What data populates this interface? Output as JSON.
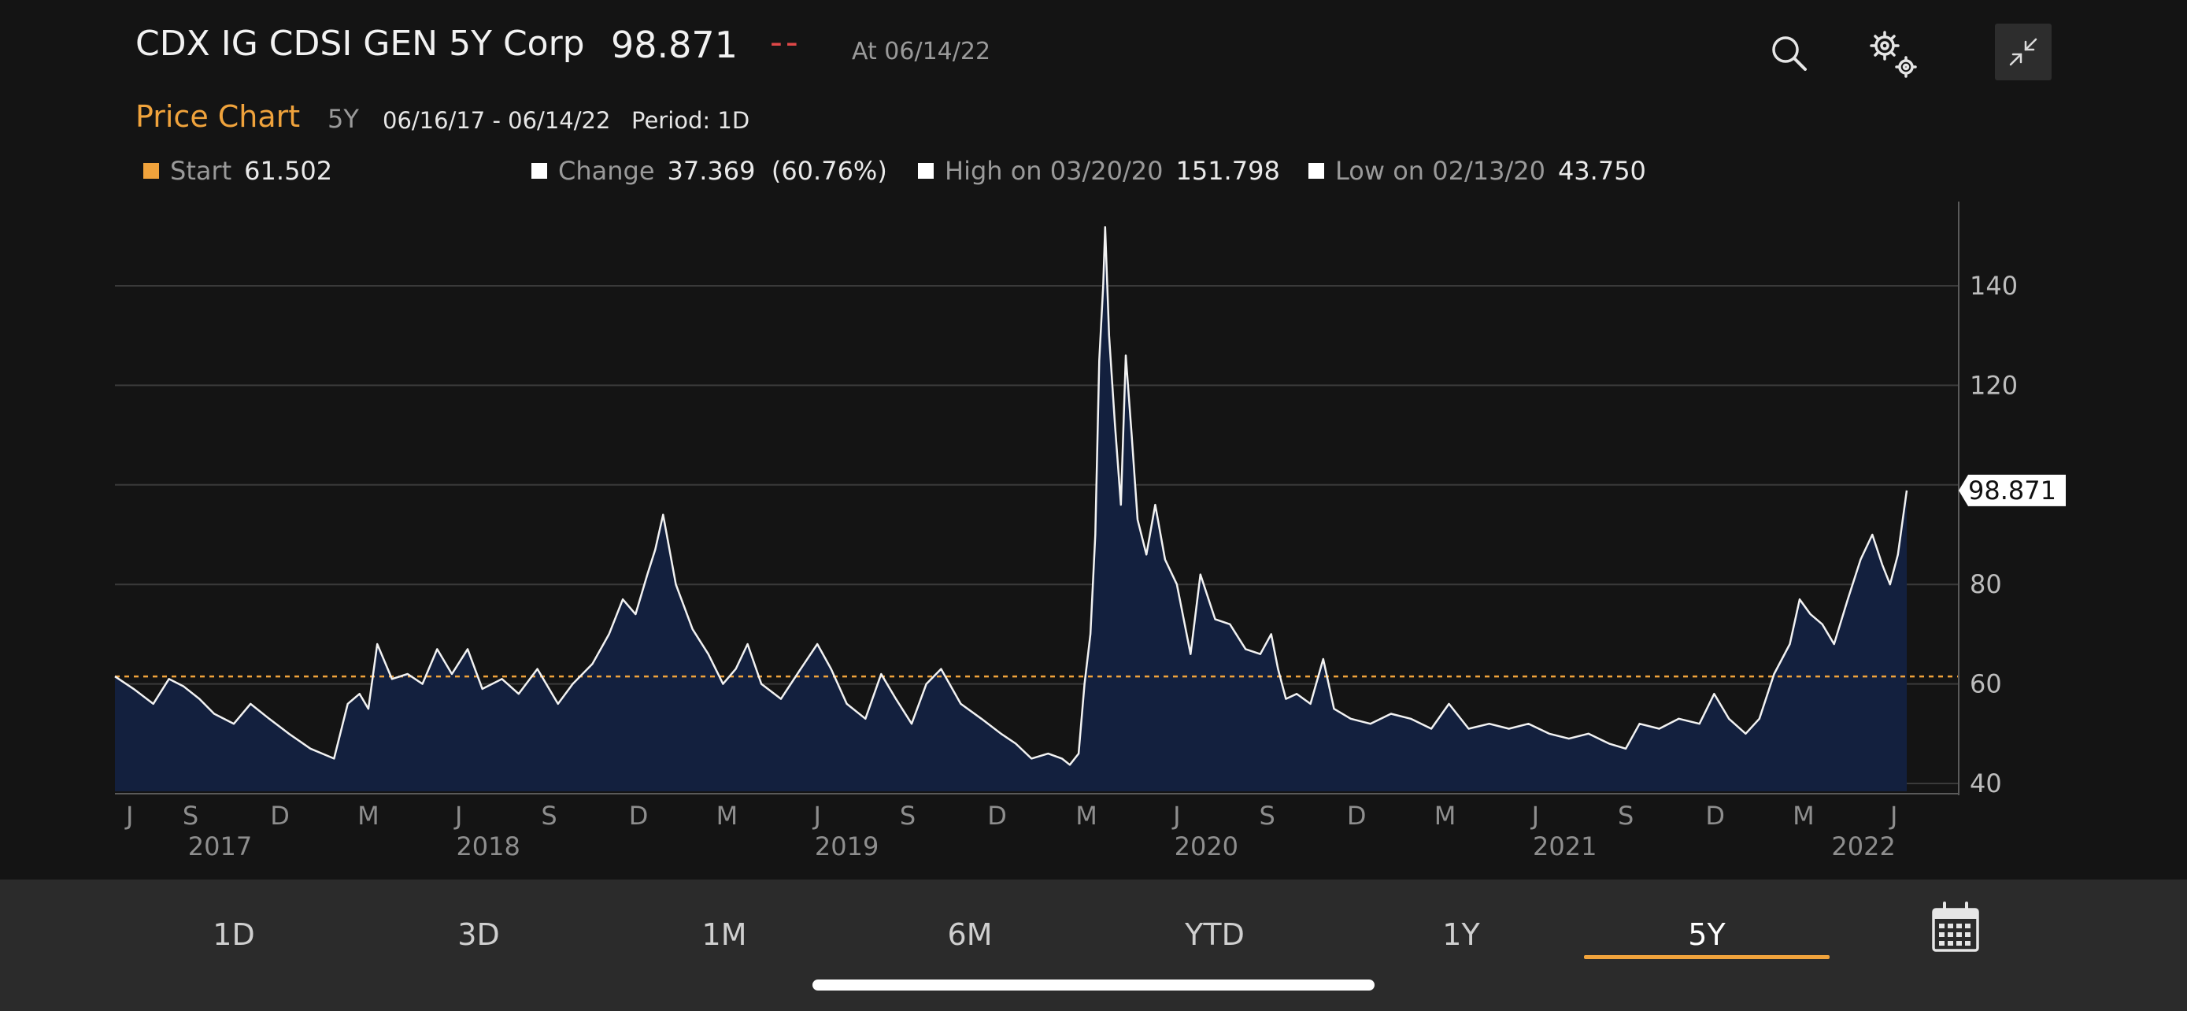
{
  "header": {
    "title": "CDX IG CDSI GEN 5Y Corp",
    "price": "98.871",
    "change_placeholder": "--",
    "as_of": "At 06/14/22"
  },
  "subheader": {
    "label": "Price Chart",
    "range": "5Y",
    "dates": "06/16/17 - 06/14/22",
    "period": "Period: 1D"
  },
  "stats": {
    "start": {
      "label": "Start",
      "value": "61.502"
    },
    "change": {
      "label": "Change",
      "value": "37.369  (60.76%)"
    },
    "high": {
      "label": "High on 03/20/20",
      "value": "151.798"
    },
    "low": {
      "label": "Low on 02/13/20",
      "value": "43.750"
    }
  },
  "colors": {
    "accent": "#f0a33c",
    "line": "#f2f2f2",
    "area": "#13203e",
    "background": "#141414",
    "negative": "#e04848"
  },
  "icons": {
    "search": "search-icon",
    "settings": "gear-icon",
    "minimize": "collapse-icon",
    "calendar": "calendar-icon"
  },
  "chart_data": {
    "type": "area",
    "x_start": "2017-06-16",
    "x_end": "2022-06-14",
    "ylim": [
      40,
      160
    ],
    "yticks": [
      140,
      120,
      100,
      80,
      60,
      40
    ],
    "ytick_labels": [
      "140",
      "120",
      "",
      "80",
      "60",
      "40"
    ],
    "reference_line": 61.502,
    "last_value_label": "98.871",
    "xticks": [
      {
        "date": "2017-07-01",
        "label": "J"
      },
      {
        "date": "2017-09-01",
        "label": "S"
      },
      {
        "date": "2017-12-01",
        "label": "D"
      },
      {
        "date": "2018-03-01",
        "label": "M"
      },
      {
        "date": "2018-06-01",
        "label": "J"
      },
      {
        "date": "2018-09-01",
        "label": "S"
      },
      {
        "date": "2018-12-01",
        "label": "D"
      },
      {
        "date": "2019-03-01",
        "label": "M"
      },
      {
        "date": "2019-06-01",
        "label": "J"
      },
      {
        "date": "2019-09-01",
        "label": "S"
      },
      {
        "date": "2019-12-01",
        "label": "D"
      },
      {
        "date": "2020-03-01",
        "label": "M"
      },
      {
        "date": "2020-06-01",
        "label": "J"
      },
      {
        "date": "2020-09-01",
        "label": "S"
      },
      {
        "date": "2020-12-01",
        "label": "D"
      },
      {
        "date": "2021-03-01",
        "label": "M"
      },
      {
        "date": "2021-06-01",
        "label": "J"
      },
      {
        "date": "2021-09-01",
        "label": "S"
      },
      {
        "date": "2021-12-01",
        "label": "D"
      },
      {
        "date": "2022-03-01",
        "label": "M"
      },
      {
        "date": "2022-06-01",
        "label": "J"
      }
    ],
    "years": [
      {
        "date": "2017-10-01",
        "label": "2017"
      },
      {
        "date": "2018-07-01",
        "label": "2018"
      },
      {
        "date": "2019-07-01",
        "label": "2019"
      },
      {
        "date": "2020-07-01",
        "label": "2020"
      },
      {
        "date": "2021-07-01",
        "label": "2021"
      },
      {
        "date": "2022-05-01",
        "label": "2022"
      }
    ],
    "series": [
      {
        "points": [
          [
            "2017-06-16",
            61.5
          ],
          [
            "2017-07-05",
            59
          ],
          [
            "2017-07-25",
            56
          ],
          [
            "2017-08-10",
            61
          ],
          [
            "2017-08-25",
            59.5
          ],
          [
            "2017-09-10",
            57
          ],
          [
            "2017-09-25",
            54
          ],
          [
            "2017-10-15",
            52
          ],
          [
            "2017-11-01",
            56
          ],
          [
            "2017-11-20",
            53
          ],
          [
            "2017-12-10",
            50
          ],
          [
            "2018-01-01",
            47
          ],
          [
            "2018-01-25",
            45
          ],
          [
            "2018-02-08",
            56
          ],
          [
            "2018-02-20",
            58
          ],
          [
            "2018-03-01",
            55
          ],
          [
            "2018-03-10",
            68
          ],
          [
            "2018-03-25",
            61
          ],
          [
            "2018-04-10",
            62
          ],
          [
            "2018-04-25",
            60
          ],
          [
            "2018-05-10",
            67
          ],
          [
            "2018-05-25",
            62
          ],
          [
            "2018-06-10",
            67
          ],
          [
            "2018-06-25",
            59
          ],
          [
            "2018-07-15",
            61
          ],
          [
            "2018-08-01",
            58
          ],
          [
            "2018-08-20",
            63
          ],
          [
            "2018-09-10",
            56
          ],
          [
            "2018-09-25",
            60
          ],
          [
            "2018-10-15",
            64
          ],
          [
            "2018-11-01",
            70
          ],
          [
            "2018-11-15",
            77
          ],
          [
            "2018-11-28",
            74
          ],
          [
            "2018-12-10",
            82
          ],
          [
            "2018-12-18",
            87
          ],
          [
            "2018-12-26",
            94
          ],
          [
            "2019-01-08",
            80
          ],
          [
            "2019-01-25",
            71
          ],
          [
            "2019-02-10",
            66
          ],
          [
            "2019-02-25",
            60
          ],
          [
            "2019-03-10",
            63
          ],
          [
            "2019-03-22",
            68
          ],
          [
            "2019-04-05",
            60
          ],
          [
            "2019-04-25",
            57
          ],
          [
            "2019-05-15",
            63
          ],
          [
            "2019-06-01",
            68
          ],
          [
            "2019-06-15",
            63
          ],
          [
            "2019-07-01",
            56
          ],
          [
            "2019-07-20",
            53
          ],
          [
            "2019-08-05",
            62
          ],
          [
            "2019-08-20",
            57
          ],
          [
            "2019-09-05",
            52
          ],
          [
            "2019-09-20",
            60
          ],
          [
            "2019-10-05",
            63
          ],
          [
            "2019-10-25",
            56
          ],
          [
            "2019-11-15",
            53
          ],
          [
            "2019-12-05",
            50
          ],
          [
            "2019-12-20",
            48
          ],
          [
            "2020-01-05",
            45
          ],
          [
            "2020-01-22",
            46
          ],
          [
            "2020-02-05",
            45
          ],
          [
            "2020-02-13",
            43.75
          ],
          [
            "2020-02-22",
            46
          ],
          [
            "2020-02-28",
            60
          ],
          [
            "2020-03-05",
            70
          ],
          [
            "2020-03-10",
            90
          ],
          [
            "2020-03-14",
            125
          ],
          [
            "2020-03-18",
            140
          ],
          [
            "2020-03-20",
            151.8
          ],
          [
            "2020-03-24",
            130
          ],
          [
            "2020-03-30",
            112
          ],
          [
            "2020-04-05",
            96
          ],
          [
            "2020-04-10",
            126
          ],
          [
            "2020-04-16",
            110
          ],
          [
            "2020-04-22",
            93
          ],
          [
            "2020-05-01",
            86
          ],
          [
            "2020-05-10",
            96
          ],
          [
            "2020-05-20",
            85
          ],
          [
            "2020-06-01",
            80
          ],
          [
            "2020-06-15",
            66
          ],
          [
            "2020-06-25",
            82
          ],
          [
            "2020-07-10",
            73
          ],
          [
            "2020-07-25",
            72
          ],
          [
            "2020-08-10",
            67
          ],
          [
            "2020-08-25",
            66
          ],
          [
            "2020-09-05",
            70
          ],
          [
            "2020-09-12",
            63
          ],
          [
            "2020-09-20",
            57
          ],
          [
            "2020-10-01",
            58
          ],
          [
            "2020-10-15",
            56
          ],
          [
            "2020-10-28",
            65
          ],
          [
            "2020-11-08",
            55
          ],
          [
            "2020-11-25",
            53
          ],
          [
            "2020-12-15",
            52
          ],
          [
            "2021-01-05",
            54
          ],
          [
            "2021-01-25",
            53
          ],
          [
            "2021-02-15",
            51
          ],
          [
            "2021-03-05",
            56
          ],
          [
            "2021-03-25",
            51
          ],
          [
            "2021-04-15",
            52
          ],
          [
            "2021-05-05",
            51
          ],
          [
            "2021-05-25",
            52
          ],
          [
            "2021-06-15",
            50
          ],
          [
            "2021-07-05",
            49
          ],
          [
            "2021-07-25",
            50
          ],
          [
            "2021-08-15",
            48
          ],
          [
            "2021-09-01",
            47
          ],
          [
            "2021-09-15",
            52
          ],
          [
            "2021-10-05",
            51
          ],
          [
            "2021-10-25",
            53
          ],
          [
            "2021-11-15",
            52
          ],
          [
            "2021-11-30",
            58
          ],
          [
            "2021-12-15",
            53
          ],
          [
            "2022-01-01",
            50
          ],
          [
            "2022-01-15",
            53
          ],
          [
            "2022-01-30",
            62
          ],
          [
            "2022-02-15",
            68
          ],
          [
            "2022-02-25",
            77
          ],
          [
            "2022-03-08",
            74
          ],
          [
            "2022-03-20",
            72
          ],
          [
            "2022-04-01",
            68
          ],
          [
            "2022-04-15",
            77
          ],
          [
            "2022-04-28",
            85
          ],
          [
            "2022-05-10",
            90
          ],
          [
            "2022-05-20",
            84
          ],
          [
            "2022-05-28",
            80
          ],
          [
            "2022-06-05",
            86
          ],
          [
            "2022-06-14",
            98.871
          ]
        ]
      }
    ]
  },
  "ranges": {
    "items": [
      "1D",
      "3D",
      "1M",
      "6M",
      "YTD",
      "1Y",
      "5Y"
    ],
    "active": "5Y"
  }
}
